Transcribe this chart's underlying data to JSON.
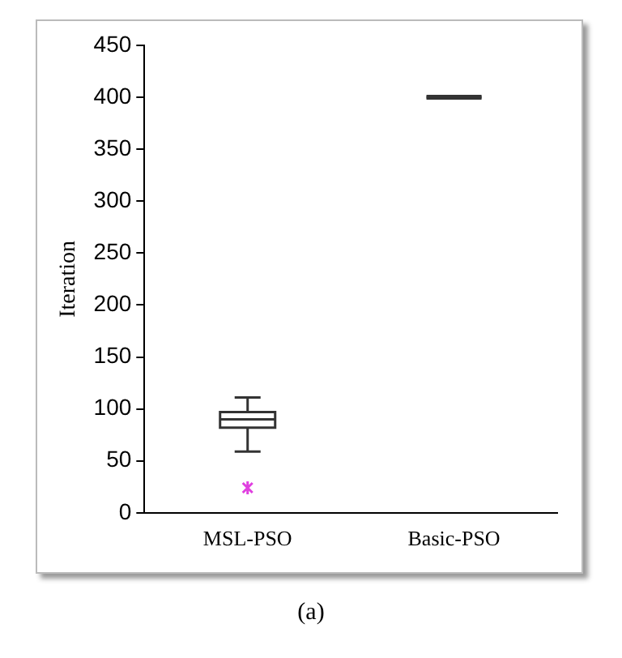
{
  "chart_data": {
    "type": "box",
    "ylabel": "Iteration",
    "categories": [
      "MSL-PSO",
      "Basic-PSO"
    ],
    "series": [
      {
        "color": "#333333",
        "boxes": [
          {
            "low": 59,
            "q1": 82,
            "median": 90,
            "q3": 97,
            "high": 111,
            "outliers": [
              24
            ]
          },
          {
            "low": 400,
            "q1": 400,
            "median": 400,
            "q3": 400,
            "high": 400
          }
        ]
      }
    ],
    "ylim": [
      0,
      450
    ],
    "yticks": [
      0,
      50,
      100,
      150,
      200,
      250,
      300,
      350,
      400,
      450
    ],
    "grid": false,
    "legend": false,
    "annotations": [
      "(a)"
    ]
  }
}
